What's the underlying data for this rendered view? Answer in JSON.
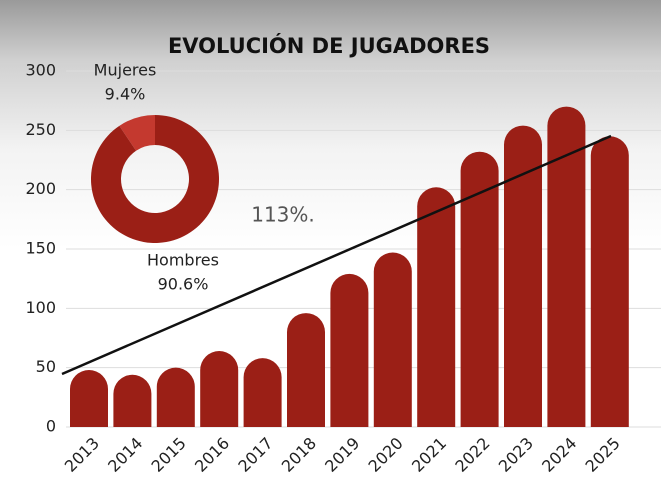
{
  "chart_data": [
    {
      "type": "bar",
      "title": "EVOLUCIÓN DE JUGADORES",
      "categories": [
        "2013",
        "2014",
        "2015",
        "2016",
        "2017",
        "2018",
        "2019",
        "2020",
        "2021",
        "2022",
        "2023",
        "2024",
        "2025"
      ],
      "values": [
        48,
        44,
        50,
        64,
        58,
        96,
        129,
        147,
        202,
        232,
        254,
        270,
        245
      ],
      "color": "#9b1f16",
      "ylim": [
        0,
        300
      ],
      "yticks": [
        0,
        50,
        100,
        150,
        200,
        250,
        300
      ],
      "grid": true,
      "annotation": "113%."
    },
    {
      "type": "donut",
      "categories": [
        "Mujeres",
        "Hombres"
      ],
      "values": [
        9.4,
        90.6
      ],
      "value_labels": [
        "9.4%",
        "90.6%"
      ],
      "colors": [
        "#c4392f",
        "#9b1f16"
      ]
    }
  ]
}
